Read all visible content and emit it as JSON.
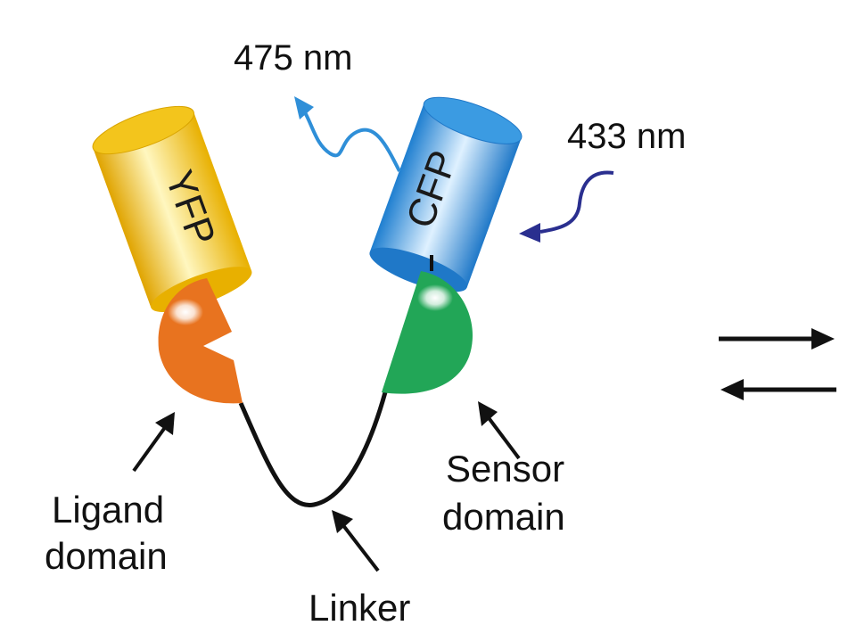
{
  "wavelengths": {
    "emission": "475 nm",
    "excitation": "433 nm"
  },
  "proteins": {
    "yfp": "YFP",
    "cfp": "CFP"
  },
  "labels": {
    "ligand_line1": "Ligand",
    "ligand_line2": "domain",
    "sensor_line1": "Sensor",
    "sensor_line2": "domain",
    "linker": "Linker"
  },
  "colors": {
    "yfp": "#f2c21a",
    "cfp": "#2f8fd8",
    "ligand": "#e8731f",
    "sensor": "#22a657",
    "emission_wave": "#2f8fd8",
    "excitation_wave": "#2a2f8f",
    "linker": "#111111"
  }
}
